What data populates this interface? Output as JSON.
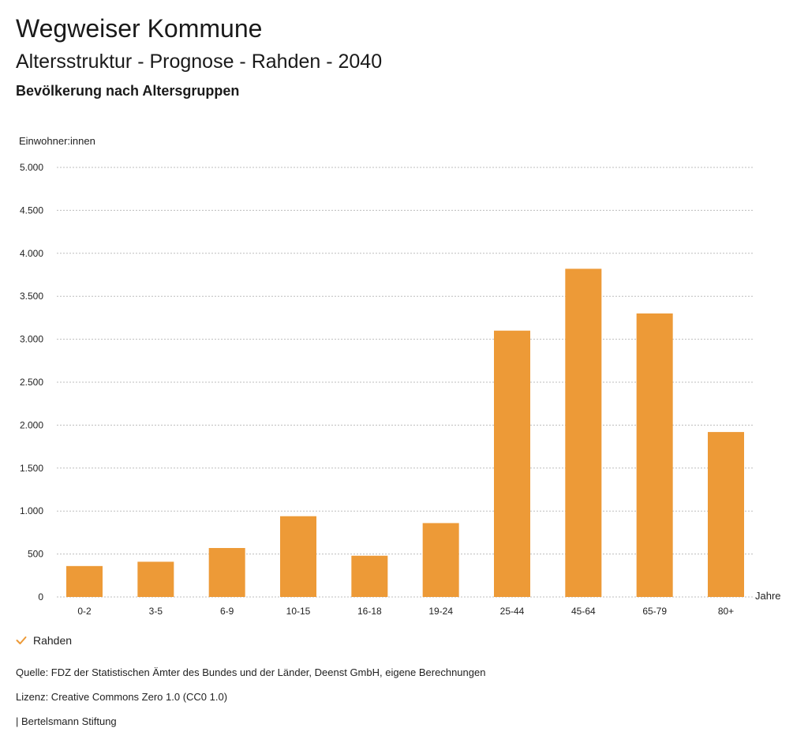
{
  "header": {
    "brand": "Wegweiser Kommune",
    "title": "Altersstruktur - Prognose - Rahden - 2040",
    "subtitle": "Bevölkerung nach Altersgruppen"
  },
  "chart_data": {
    "type": "bar",
    "ylabel": "Einwohner:innen",
    "xlabel": "Jahre",
    "categories": [
      "0-2",
      "3-5",
      "6-9",
      "10-15",
      "16-18",
      "19-24",
      "25-44",
      "45-64",
      "65-79",
      "80+"
    ],
    "series": [
      {
        "name": "Rahden",
        "values": [
          360,
          410,
          570,
          940,
          480,
          860,
          3100,
          3820,
          3300,
          1920
        ]
      }
    ],
    "ylim": [
      0,
      5000
    ],
    "yticks": [
      0,
      500,
      1000,
      1500,
      2000,
      2500,
      3000,
      3500,
      4000,
      4500,
      5000
    ],
    "ytick_labels": [
      "0",
      "500",
      "1.000",
      "1.500",
      "2.000",
      "2.500",
      "3.000",
      "3.500",
      "4.000",
      "4.500",
      "5.000"
    ],
    "grid": true,
    "legend_position": "bottom-left",
    "bar_color": "#ED9A37",
    "grid_color": "#bdbdbd"
  },
  "legend": {
    "label": "Rahden",
    "check_color": "#ED9A37"
  },
  "footer": {
    "source": "Quelle: FDZ der Statistischen Ämter des Bundes und der Länder, Deenst GmbH, eigene Berechnungen",
    "license": "Lizenz: Creative Commons Zero 1.0 (CC0 1.0)",
    "publisher": "| Bertelsmann Stiftung"
  }
}
